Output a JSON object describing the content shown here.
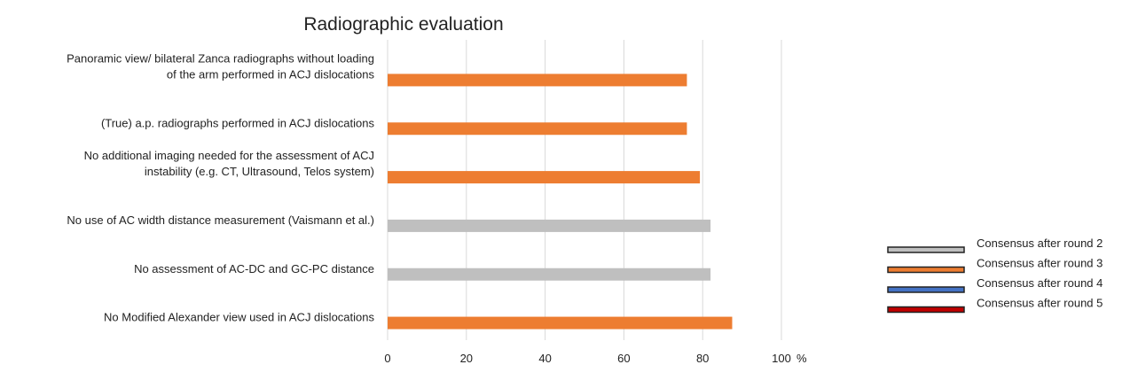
{
  "chart_data": {
    "type": "bar",
    "orientation": "horizontal",
    "title": "Radiographic evaluation",
    "xlabel": "",
    "ylabel": "",
    "xlim": [
      0,
      100
    ],
    "x_ticks": [
      "0",
      "20",
      "40",
      "60",
      "80",
      "100"
    ],
    "x_unit": "%",
    "grid": true,
    "legend_position": "right",
    "categories": [
      [
        "Panoramic view/ bilateral Zanca radiographs without loading",
        "of the arm performed in ACJ dislocations"
      ],
      [
        "(True) a.p. radiographs performed in ACJ dislocations"
      ],
      [
        "No additional imaging needed for the assessment of ACJ",
        "instability (e.g. CT, Ultrasound, Telos system)"
      ],
      [
        "No use of AC width distance measurement (Vaismann et al.)"
      ],
      [
        "No assessment of AC-DC and GC-PC distance"
      ],
      [
        "No Modified Alexander view used in ACJ dislocations"
      ]
    ],
    "values": [
      76,
      76,
      79.3,
      82,
      82,
      87.5
    ],
    "bar_rounds": [
      3,
      3,
      3,
      2,
      2,
      3
    ],
    "legend": [
      {
        "label": "Consensus after round 2",
        "color": "#bfbfbf",
        "round": 2
      },
      {
        "label": "Consensus after round 3",
        "color": "#ed7d31",
        "round": 3
      },
      {
        "label": "Consensus after round 4",
        "color": "#4472c4",
        "round": 4
      },
      {
        "label": "Consensus after round 5",
        "color": "#c00000",
        "round": 5
      }
    ]
  }
}
